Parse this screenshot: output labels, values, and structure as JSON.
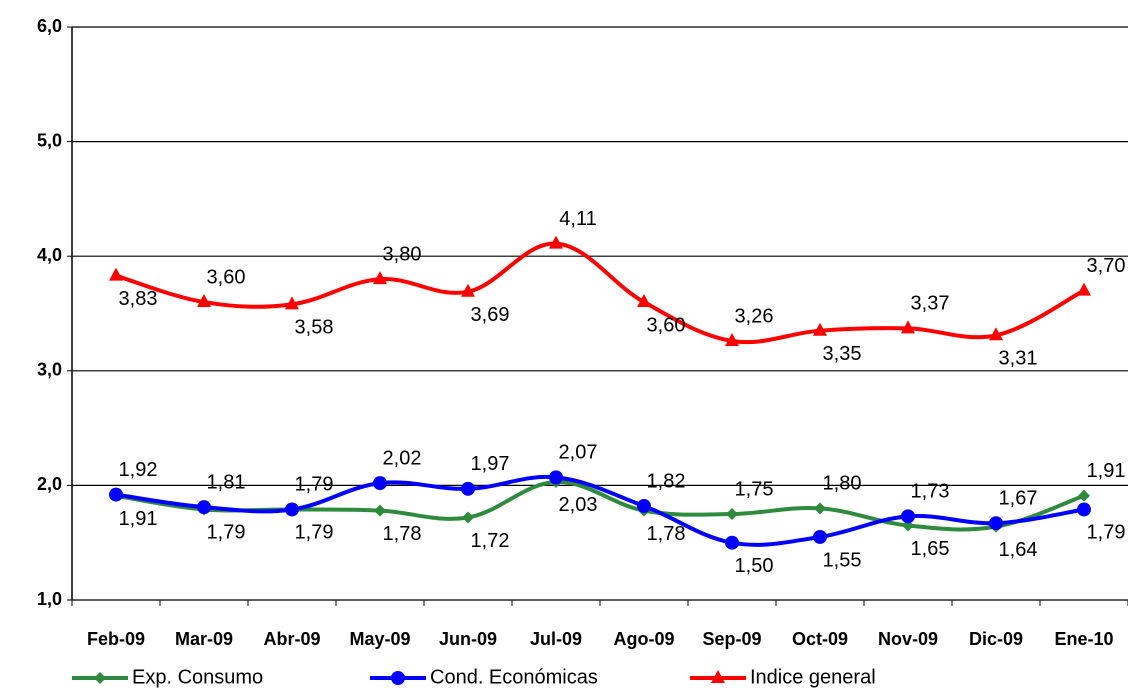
{
  "chart_data": {
    "type": "line",
    "categories": [
      "Feb-09",
      "Mar-09",
      "Abr-09",
      "May-09",
      "Jun-09",
      "Jul-09",
      "Ago-09",
      "Sep-09",
      "Oct-09",
      "Nov-09",
      "Dic-09",
      "Ene-10"
    ],
    "series": [
      {
        "name": "Exp. Consumo",
        "color": "#2e8b3e",
        "marker": "diamond",
        "values": [
          1.91,
          1.79,
          1.79,
          1.78,
          1.72,
          2.03,
          1.78,
          1.75,
          1.8,
          1.65,
          1.64,
          1.91
        ],
        "value_labels": [
          "1,91",
          "1,79",
          "1,79",
          "1,78",
          "1,72",
          "2,03",
          "1,78",
          "1,75",
          "1,80",
          "1,65",
          "1,64",
          "1,91"
        ]
      },
      {
        "name": "Cond. Económicas",
        "color": "#0000ff",
        "marker": "circle",
        "values": [
          1.92,
          1.81,
          1.79,
          2.02,
          1.97,
          2.07,
          1.82,
          1.5,
          1.55,
          1.73,
          1.67,
          1.79
        ],
        "value_labels": [
          "1,92",
          "1,81",
          "1,79",
          "2,02",
          "1,97",
          "2,07",
          "1,82",
          "1,50",
          "1,55",
          "1,73",
          "1,67",
          "1,79"
        ]
      },
      {
        "name": "Indice general",
        "color": "#ff0000",
        "marker": "triangle",
        "values": [
          3.83,
          3.6,
          3.58,
          3.8,
          3.69,
          4.11,
          3.6,
          3.26,
          3.35,
          3.37,
          3.31,
          3.7
        ],
        "value_labels": [
          "3,83",
          "3,60",
          "3,58",
          "3,80",
          "3,69",
          "4,11",
          "3,60",
          "3,26",
          "3,35",
          "3,37",
          "3,31",
          "3,70"
        ]
      }
    ],
    "ylim": [
      1,
      6
    ],
    "yticks": [
      {
        "value": 1,
        "label": "1,0"
      },
      {
        "value": 2,
        "label": "2,0"
      },
      {
        "value": 3,
        "label": "3,0"
      },
      {
        "value": 4,
        "label": "4,0"
      },
      {
        "value": 5,
        "label": "5,0"
      },
      {
        "value": 6,
        "label": "6,0"
      }
    ],
    "grid": true,
    "legend": "bottom"
  }
}
